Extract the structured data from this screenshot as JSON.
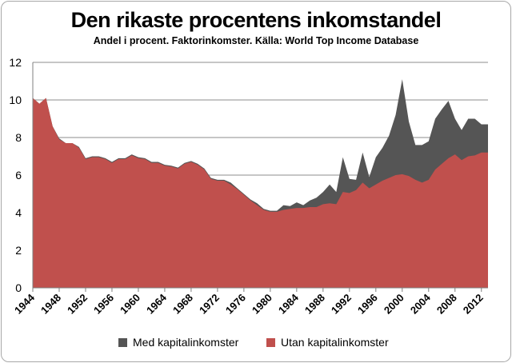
{
  "chart_data": {
    "type": "area",
    "title": "Den rikaste procentens inkomstandel",
    "subtitle": "Andel i procent. Faktorinkomster. Källa: World Top Income Database",
    "xlabel": "",
    "ylabel": "",
    "ylim": [
      0,
      12
    ],
    "yticks": [
      "0",
      "2",
      "4",
      "6",
      "8",
      "10",
      "12"
    ],
    "xlim": [
      1944,
      2013
    ],
    "xticks": [
      "1944",
      "1948",
      "1952",
      "1956",
      "1960",
      "1964",
      "1968",
      "1972",
      "1976",
      "1980",
      "1984",
      "1988",
      "1992",
      "1996",
      "2000",
      "2004",
      "2008",
      "2012"
    ],
    "grid": true,
    "legend_position": "bottom",
    "x": [
      1944,
      1945,
      1946,
      1947,
      1948,
      1949,
      1950,
      1951,
      1952,
      1953,
      1954,
      1955,
      1956,
      1957,
      1958,
      1959,
      1960,
      1961,
      1962,
      1963,
      1964,
      1965,
      1966,
      1967,
      1968,
      1969,
      1970,
      1971,
      1972,
      1973,
      1974,
      1975,
      1976,
      1977,
      1978,
      1979,
      1980,
      1981,
      1982,
      1983,
      1984,
      1985,
      1986,
      1987,
      1988,
      1989,
      1990,
      1991,
      1992,
      1993,
      1994,
      1995,
      1996,
      1997,
      1998,
      1999,
      2000,
      2001,
      2002,
      2003,
      2004,
      2005,
      2006,
      2007,
      2008,
      2009,
      2010,
      2011,
      2012,
      2013
    ],
    "series": [
      {
        "name": "Med kapitalinkomster",
        "color": "#555555",
        "values": [
          10.1,
          9.8,
          10.1,
          8.6,
          7.95,
          7.7,
          7.7,
          7.5,
          6.9,
          7.0,
          7.0,
          6.9,
          6.7,
          6.9,
          6.9,
          7.1,
          6.95,
          6.9,
          6.7,
          6.7,
          6.55,
          6.5,
          6.4,
          6.65,
          6.75,
          6.6,
          6.35,
          5.85,
          5.75,
          5.75,
          5.6,
          5.3,
          5.0,
          4.7,
          4.5,
          4.2,
          4.1,
          4.1,
          4.4,
          4.35,
          4.55,
          4.4,
          4.65,
          4.8,
          5.1,
          5.5,
          5.1,
          6.95,
          5.8,
          5.75,
          7.2,
          5.9,
          6.95,
          7.45,
          8.1,
          9.2,
          11.1,
          8.85,
          7.6,
          7.6,
          7.8,
          9.0,
          9.5,
          9.95,
          9.0,
          8.4,
          9.0,
          9.0,
          8.7,
          8.7
        ]
      },
      {
        "name": "Utan kapitalinkomster",
        "color": "#c0504d",
        "values": [
          10.1,
          9.8,
          10.1,
          8.6,
          7.9,
          7.7,
          7.7,
          7.45,
          6.85,
          6.95,
          6.95,
          6.85,
          6.65,
          6.85,
          6.85,
          7.05,
          6.9,
          6.85,
          6.65,
          6.65,
          6.5,
          6.45,
          6.35,
          6.6,
          6.7,
          6.55,
          6.3,
          5.8,
          5.7,
          5.7,
          5.5,
          5.25,
          4.95,
          4.65,
          4.4,
          4.15,
          4.05,
          4.05,
          4.15,
          4.2,
          4.25,
          4.25,
          4.3,
          4.3,
          4.45,
          4.5,
          4.45,
          5.1,
          5.05,
          5.2,
          5.6,
          5.3,
          5.5,
          5.7,
          5.85,
          6.0,
          6.05,
          5.95,
          5.75,
          5.6,
          5.75,
          6.3,
          6.6,
          6.9,
          7.1,
          6.8,
          7.0,
          7.05,
          7.2,
          7.2
        ]
      }
    ]
  }
}
